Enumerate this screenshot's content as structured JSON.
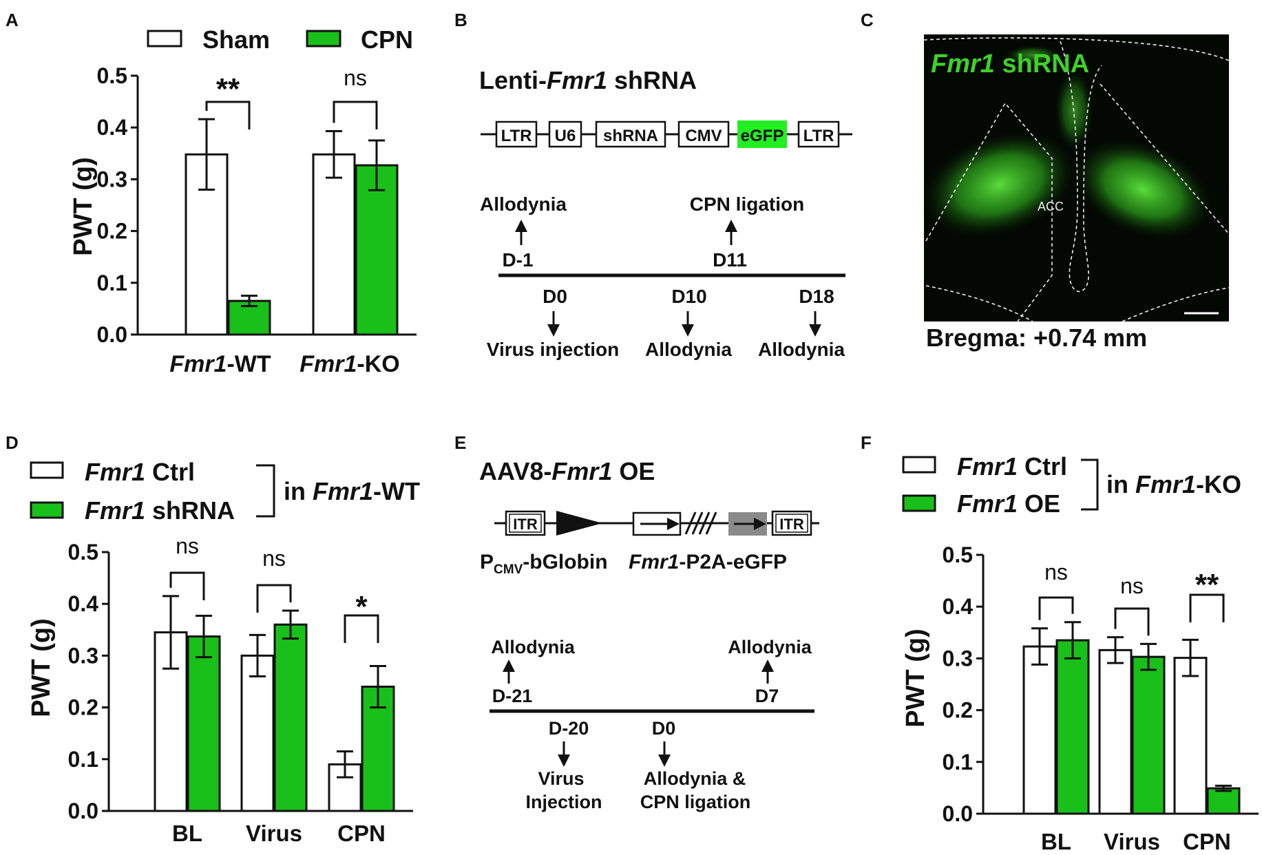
{
  "panels": {
    "A": {
      "letter": "A"
    },
    "B": {
      "letter": "B"
    },
    "C": {
      "letter": "C"
    },
    "D": {
      "letter": "D"
    },
    "E": {
      "letter": "E"
    },
    "F": {
      "letter": "F"
    }
  },
  "colors": {
    "sham": "#ffffff",
    "treat": "#19c019",
    "stroke": "#111111",
    "egfp_box": "#22ee22",
    "image_bg": "#030803",
    "image_fluor": "#3fd02a"
  },
  "chart_data": [
    {
      "panel": "A",
      "type": "bar",
      "ylabel": "PWT (g)",
      "ylim": [
        0,
        0.5
      ],
      "yticks": [
        "0.0",
        "0.1",
        "0.2",
        "0.3",
        "0.4",
        "0.5"
      ],
      "categories": [
        {
          "italic": "Fmr1",
          "plain": "-WT"
        },
        {
          "italic": "Fmr1",
          "plain": "-KO"
        }
      ],
      "legend": {
        "items": [
          "Sham",
          "CPN"
        ],
        "placement": "top"
      },
      "series": [
        {
          "name": "Sham",
          "values": [
            0.348,
            0.348
          ],
          "errors": [
            0.068,
            0.045
          ]
        },
        {
          "name": "CPN",
          "values": [
            0.065,
            0.327
          ],
          "errors": [
            0.01,
            0.048
          ]
        }
      ],
      "significance": [
        "**",
        "ns"
      ]
    },
    {
      "panel": "D",
      "type": "bar",
      "ylabel": "PWT (g)",
      "ylim": [
        0,
        0.5
      ],
      "yticks": [
        "0.0",
        "0.1",
        "0.2",
        "0.3",
        "0.4",
        "0.5"
      ],
      "categories": [
        "BL",
        "Virus",
        "CPN"
      ],
      "legend": {
        "items": [
          {
            "italic": "Fmr1",
            "plain": " Ctrl"
          },
          {
            "italic": "Fmr1",
            "plain": " shRNA"
          }
        ],
        "bracket_label": {
          "plain": "in ",
          "italic": "Fmr1",
          "suffix": "-WT"
        },
        "placement": "top-left"
      },
      "series": [
        {
          "name": "Fmr1 Ctrl",
          "values": [
            0.345,
            0.3,
            0.09
          ],
          "errors": [
            0.07,
            0.04,
            0.025
          ]
        },
        {
          "name": "Fmr1 shRNA",
          "values": [
            0.337,
            0.36,
            0.24
          ],
          "errors": [
            0.04,
            0.027,
            0.04
          ]
        }
      ],
      "significance": [
        "ns",
        "ns",
        "*"
      ]
    },
    {
      "panel": "F",
      "type": "bar",
      "ylabel": "PWT (g)",
      "ylim": [
        0,
        0.5
      ],
      "yticks": [
        "0.0",
        "0.1",
        "0.2",
        "0.3",
        "0.4",
        "0.5"
      ],
      "categories": [
        "BL",
        "Virus",
        "CPN"
      ],
      "legend": {
        "items": [
          {
            "italic": "Fmr1",
            "plain": " Ctrl"
          },
          {
            "italic": "Fmr1",
            "plain": " OE"
          }
        ],
        "bracket_label": {
          "plain": "in ",
          "italic": "Fmr1",
          "suffix": "-KO"
        },
        "placement": "top-left"
      },
      "series": [
        {
          "name": "Fmr1 Ctrl",
          "values": [
            0.323,
            0.316,
            0.301
          ],
          "errors": [
            0.035,
            0.025,
            0.035
          ]
        },
        {
          "name": "Fmr1 OE",
          "values": [
            0.335,
            0.303,
            0.049
          ],
          "errors": [
            0.035,
            0.025,
            0.005
          ]
        }
      ],
      "significance": [
        "ns",
        "ns",
        "**"
      ]
    }
  ],
  "panel_b": {
    "title_prefix": "Lenti-",
    "title_italic": "Fmr1",
    "title_suffix": " shRNA",
    "construct": [
      "LTR",
      "U6",
      "shRNA",
      "CMV",
      "eGFP",
      "LTR"
    ],
    "above": [
      {
        "day": "D-1",
        "event": "Allodynia"
      },
      {
        "day": "D11",
        "event": "CPN ligation"
      }
    ],
    "below": [
      {
        "day": "D0",
        "event": "Virus injection"
      },
      {
        "day": "D10",
        "event": "Allodynia"
      },
      {
        "day": "D18",
        "event": "Allodynia"
      }
    ]
  },
  "panel_c": {
    "label_italic": "Fmr1",
    "label_plain": " shRNA",
    "region": "ACC",
    "caption": "Bregma: +0.74 mm"
  },
  "panel_e": {
    "title_prefix": "AAV8-",
    "title_italic": "Fmr1",
    "title_suffix": " OE",
    "construct": [
      "ITR",
      "ITR"
    ],
    "promoter_main": "P",
    "promoter_sub": "CMV",
    "promoter_suffix": "-bGlobin",
    "gene_italic": "Fmr1",
    "gene_suffix": "-P2A-eGFP",
    "above": [
      {
        "day": "D-21",
        "event": "Allodynia"
      },
      {
        "day": "D7",
        "event": "Allodynia"
      }
    ],
    "below": [
      {
        "day": "D-20",
        "event_lines": [
          "Virus",
          "Injection"
        ]
      },
      {
        "day": "D0",
        "event_lines": [
          "Allodynia &",
          "CPN ligation"
        ]
      }
    ]
  }
}
